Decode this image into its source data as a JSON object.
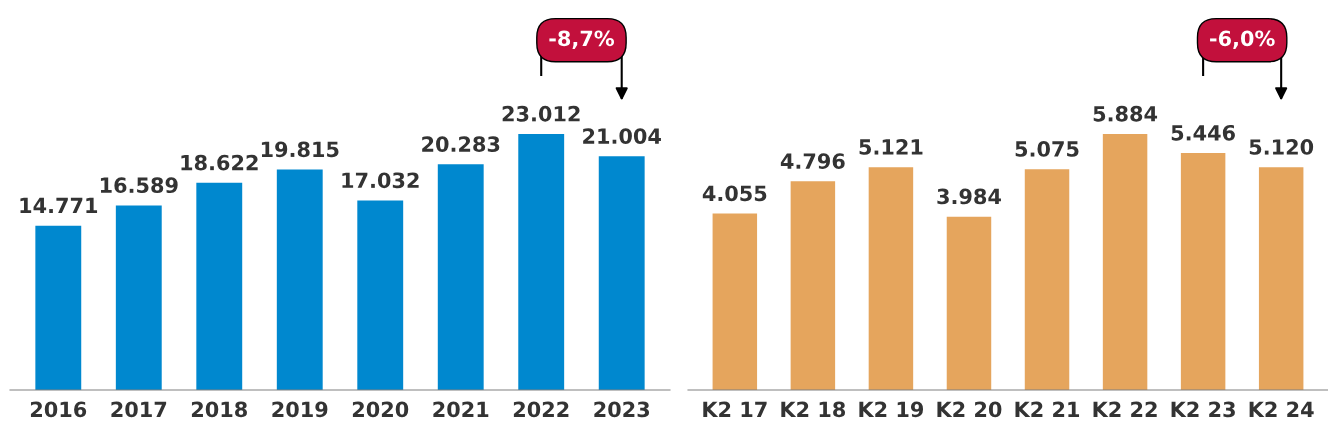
{
  "chart_data": [
    {
      "type": "bar",
      "categories": [
        "2016",
        "2017",
        "2018",
        "2019",
        "2020",
        "2021",
        "2022",
        "2023"
      ],
      "values": [
        14771,
        16589,
        18622,
        19815,
        17032,
        20283,
        23012,
        21004
      ],
      "color": "#0088cf",
      "value_labels": [
        "14.771",
        "16.589",
        "18.622",
        "19.815",
        "17.032",
        "20.283",
        "23.012",
        "21.004"
      ],
      "annotations": [
        "-8,7%"
      ],
      "grid": false,
      "legend": false
    },
    {
      "type": "bar",
      "categories": [
        "K2 17",
        "K2 18",
        "K2 19",
        "K2 20",
        "K2 21",
        "K2 22",
        "K2 23",
        "K2 24"
      ],
      "values": [
        4055,
        4796,
        5121,
        3984,
        5075,
        5884,
        5446,
        5120
      ],
      "color": "#e5a55d",
      "value_labels": [
        "4.055",
        "4.796",
        "5.121",
        "3.984",
        "5.075",
        "5.884",
        "5.446",
        "5.120"
      ],
      "annotations": [
        "-6,0%"
      ],
      "grid": false,
      "legend": false
    }
  ]
}
